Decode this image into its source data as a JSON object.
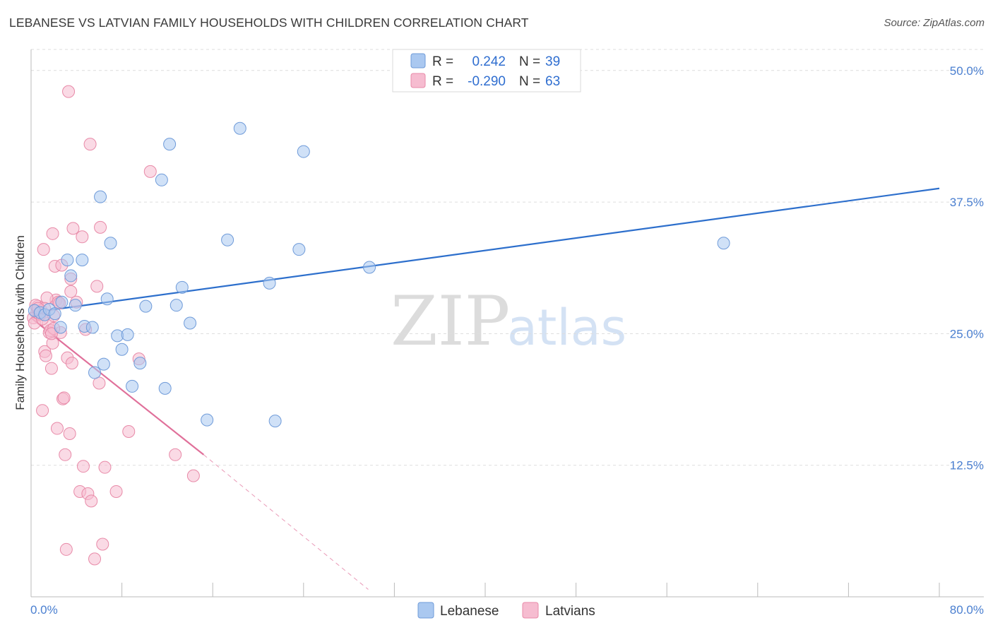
{
  "title": "LEBANESE VS LATVIAN FAMILY HOUSEHOLDS WITH CHILDREN CORRELATION CHART",
  "source": "Source: ZipAtlas.com",
  "watermark": {
    "zip": "ZIP",
    "atlas": "atlas"
  },
  "colors": {
    "lebanese_fill": "#aac8f0",
    "lebanese_stroke": "#6f9bd9",
    "lebanese_line": "#2d6fcc",
    "latvian_fill": "#f6bcd0",
    "latvian_stroke": "#e88aa8",
    "latvian_line": "#e0709a",
    "tick_label": "#4a7fd0",
    "grid": "#dddddd"
  },
  "legend": {
    "rows": [
      {
        "r_label": "R =",
        "r_value": "0.242",
        "n_label": "N =",
        "n_value": "39"
      },
      {
        "r_label": "R =",
        "r_value": "-0.290",
        "n_label": "N =",
        "n_value": "63"
      }
    ]
  },
  "chart_data": {
    "type": "scatter",
    "title": "LEBANESE VS LATVIAN FAMILY HOUSEHOLDS WITH CHILDREN CORRELATION CHART",
    "xlabel": "",
    "ylabel": "Family Households with Children",
    "xlim": [
      0,
      80
    ],
    "ylim": [
      0,
      52
    ],
    "x_tick_labels": {
      "min": "0.0%",
      "max": "80.0%"
    },
    "y_ticks": [
      12.5,
      25.0,
      37.5,
      50.0
    ],
    "y_tick_labels": [
      "12.5%",
      "25.0%",
      "37.5%",
      "50.0%"
    ],
    "grid": "horizontal dashed",
    "legend_placement": "top-center",
    "series": [
      {
        "name": "Lebanese",
        "r": 0.242,
        "n": 39,
        "trend": {
          "x": [
            0,
            80
          ],
          "y": [
            27.0,
            38.8
          ]
        },
        "points": [
          [
            0.3,
            27.2
          ],
          [
            0.8,
            27.0
          ],
          [
            1.2,
            26.8
          ],
          [
            1.6,
            27.3
          ],
          [
            2.1,
            26.9
          ],
          [
            2.6,
            25.6
          ],
          [
            2.7,
            28.0
          ],
          [
            3.2,
            32.0
          ],
          [
            3.5,
            30.5
          ],
          [
            3.9,
            27.7
          ],
          [
            4.5,
            32.0
          ],
          [
            4.7,
            25.7
          ],
          [
            5.4,
            25.6
          ],
          [
            5.6,
            21.3
          ],
          [
            6.1,
            38.0
          ],
          [
            6.4,
            22.1
          ],
          [
            6.7,
            28.3
          ],
          [
            7.0,
            33.6
          ],
          [
            7.6,
            24.8
          ],
          [
            8.0,
            23.5
          ],
          [
            8.5,
            24.9
          ],
          [
            8.9,
            20.0
          ],
          [
            9.6,
            22.2
          ],
          [
            10.1,
            27.6
          ],
          [
            11.5,
            39.6
          ],
          [
            11.8,
            19.8
          ],
          [
            12.2,
            43.0
          ],
          [
            12.8,
            27.7
          ],
          [
            13.3,
            29.4
          ],
          [
            14.0,
            26.0
          ],
          [
            15.5,
            16.8
          ],
          [
            17.3,
            33.9
          ],
          [
            18.4,
            44.5
          ],
          [
            21.0,
            29.8
          ],
          [
            21.5,
            16.7
          ],
          [
            23.6,
            33.0
          ],
          [
            24.0,
            42.3
          ],
          [
            29.8,
            31.3
          ],
          [
            61.0,
            33.6
          ]
        ]
      },
      {
        "name": "Latvians",
        "r": -0.29,
        "n": 63,
        "trend": {
          "x": [
            0,
            15.2
          ],
          "y": [
            26.5,
            13.5
          ]
        },
        "trend_extension": {
          "x": [
            15.2,
            29.7
          ],
          "y": [
            13.5,
            0.7
          ]
        },
        "points": [
          [
            0.2,
            26.5
          ],
          [
            0.3,
            26.0
          ],
          [
            0.5,
            27.0
          ],
          [
            0.6,
            27.6
          ],
          [
            0.8,
            26.8
          ],
          [
            0.9,
            27.2
          ],
          [
            1.0,
            17.7
          ],
          [
            1.1,
            33.0
          ],
          [
            1.2,
            23.3
          ],
          [
            1.3,
            22.9
          ],
          [
            1.5,
            26.0
          ],
          [
            1.6,
            25.1
          ],
          [
            1.7,
            25.3
          ],
          [
            1.8,
            21.7
          ],
          [
            1.9,
            24.1
          ],
          [
            1.9,
            34.5
          ],
          [
            2.0,
            26.7
          ],
          [
            2.1,
            31.4
          ],
          [
            2.2,
            28.2
          ],
          [
            2.3,
            16.0
          ],
          [
            2.4,
            28.0
          ],
          [
            2.6,
            25.1
          ],
          [
            2.7,
            31.5
          ],
          [
            2.8,
            18.8
          ],
          [
            2.9,
            18.9
          ],
          [
            3.0,
            13.5
          ],
          [
            3.1,
            4.5
          ],
          [
            3.2,
            22.7
          ],
          [
            3.3,
            48.0
          ],
          [
            3.4,
            15.5
          ],
          [
            3.5,
            29.0
          ],
          [
            3.5,
            30.2
          ],
          [
            3.6,
            22.2
          ],
          [
            3.7,
            35.0
          ],
          [
            4.0,
            28.0
          ],
          [
            4.3,
            10.0
          ],
          [
            4.5,
            34.2
          ],
          [
            4.6,
            12.4
          ],
          [
            4.8,
            25.4
          ],
          [
            5.0,
            9.8
          ],
          [
            5.2,
            43.0
          ],
          [
            5.3,
            9.1
          ],
          [
            5.6,
            3.6
          ],
          [
            5.8,
            29.5
          ],
          [
            6.0,
            20.3
          ],
          [
            6.1,
            35.1
          ],
          [
            6.3,
            5.0
          ],
          [
            6.5,
            12.3
          ],
          [
            7.5,
            10.0
          ],
          [
            8.6,
            15.7
          ],
          [
            9.5,
            22.6
          ],
          [
            10.5,
            40.4
          ],
          [
            12.7,
            13.5
          ],
          [
            14.3,
            11.5
          ],
          [
            0.4,
            27.7
          ],
          [
            0.7,
            26.9
          ],
          [
            1.4,
            28.4
          ],
          [
            1.0,
            26.4
          ],
          [
            2.5,
            27.9
          ],
          [
            1.2,
            27.4
          ],
          [
            2.0,
            25.5
          ],
          [
            0.6,
            27.4
          ],
          [
            1.8,
            25.0
          ]
        ]
      }
    ]
  }
}
